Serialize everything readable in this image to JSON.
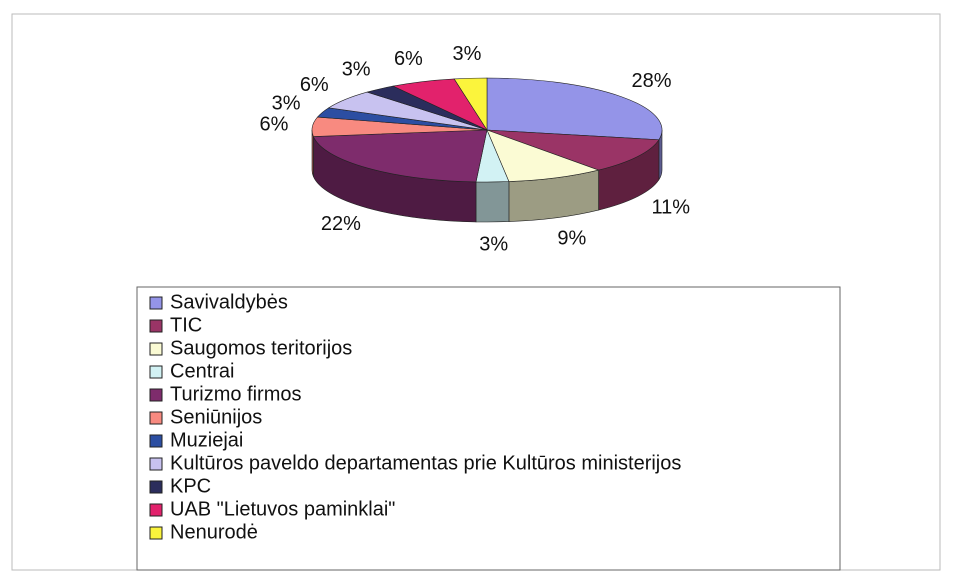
{
  "chart_data": {
    "type": "pie",
    "categories": [
      "Savivaldybės",
      "TIC",
      "Saugomos teritorijos",
      "Centrai",
      "Turizmo firmos",
      "Seniūnijos",
      "Muziejai",
      "Kultūros paveldo departamentas prie Kultūros ministerijos",
      "KPC",
      "UAB \"Lietuvos paminklai\"",
      "Nenurodė"
    ],
    "values": [
      28,
      11,
      9,
      3,
      22,
      6,
      3,
      6,
      3,
      6,
      3
    ],
    "value_labels": [
      "28%",
      "11%",
      "9%",
      "3%",
      "22%",
      "6%",
      "3%",
      "6%",
      "3%",
      "6%",
      "3%"
    ],
    "colors": [
      "#9494e8",
      "#9a3466",
      "#fbfbd4",
      "#d2f2f4",
      "#7e2c6c",
      "#f88a80",
      "#2c4ea2",
      "#c8c2f0",
      "#2b2d5c",
      "#e2226c",
      "#fbf43c"
    ],
    "legend": "bottom"
  }
}
